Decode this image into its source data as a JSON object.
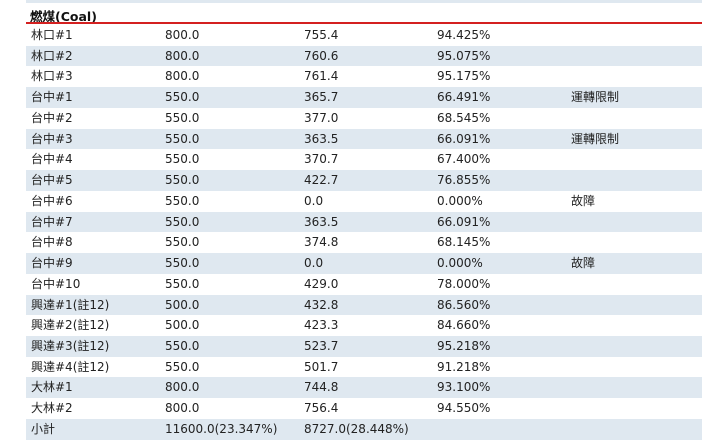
{
  "section": {
    "title": "燃煤(Coal)"
  },
  "rows": [
    {
      "name": "林口#1",
      "capacity": "800.0",
      "net": "755.4",
      "percent": "94.425%",
      "note": ""
    },
    {
      "name": "林口#2",
      "capacity": "800.0",
      "net": "760.6",
      "percent": "95.075%",
      "note": ""
    },
    {
      "name": "林口#3",
      "capacity": "800.0",
      "net": "761.4",
      "percent": "95.175%",
      "note": ""
    },
    {
      "name": "台中#1",
      "capacity": "550.0",
      "net": "365.7",
      "percent": "66.491%",
      "note": "運轉限制"
    },
    {
      "name": "台中#2",
      "capacity": "550.0",
      "net": "377.0",
      "percent": "68.545%",
      "note": ""
    },
    {
      "name": "台中#3",
      "capacity": "550.0",
      "net": "363.5",
      "percent": "66.091%",
      "note": "運轉限制"
    },
    {
      "name": "台中#4",
      "capacity": "550.0",
      "net": "370.7",
      "percent": "67.400%",
      "note": ""
    },
    {
      "name": "台中#5",
      "capacity": "550.0",
      "net": "422.7",
      "percent": "76.855%",
      "note": ""
    },
    {
      "name": "台中#6",
      "capacity": "550.0",
      "net": "0.0",
      "percent": "0.000%",
      "note": "故障"
    },
    {
      "name": "台中#7",
      "capacity": "550.0",
      "net": "363.5",
      "percent": "66.091%",
      "note": ""
    },
    {
      "name": "台中#8",
      "capacity": "550.0",
      "net": "374.8",
      "percent": "68.145%",
      "note": ""
    },
    {
      "name": "台中#9",
      "capacity": "550.0",
      "net": "0.0",
      "percent": "0.000%",
      "note": "故障"
    },
    {
      "name": "台中#10",
      "capacity": "550.0",
      "net": "429.0",
      "percent": "78.000%",
      "note": ""
    },
    {
      "name": "興達#1(註12)",
      "capacity": "500.0",
      "net": "432.8",
      "percent": "86.560%",
      "note": ""
    },
    {
      "name": "興達#2(註12)",
      "capacity": "500.0",
      "net": "423.3",
      "percent": "84.660%",
      "note": ""
    },
    {
      "name": "興達#3(註12)",
      "capacity": "550.0",
      "net": "523.7",
      "percent": "95.218%",
      "note": ""
    },
    {
      "name": "興達#4(註12)",
      "capacity": "550.0",
      "net": "501.7",
      "percent": "91.218%",
      "note": ""
    },
    {
      "name": "大林#1",
      "capacity": "800.0",
      "net": "744.8",
      "percent": "93.100%",
      "note": ""
    },
    {
      "name": "大林#2",
      "capacity": "800.0",
      "net": "756.4",
      "percent": "94.550%",
      "note": ""
    },
    {
      "name": "小計",
      "capacity": "11600.0(23.347%)",
      "net": "8727.0(28.448%)",
      "percent": "",
      "note": ""
    }
  ],
  "colors": {
    "row_alt": "#dfe8f0",
    "accent_line": "#d42020"
  }
}
